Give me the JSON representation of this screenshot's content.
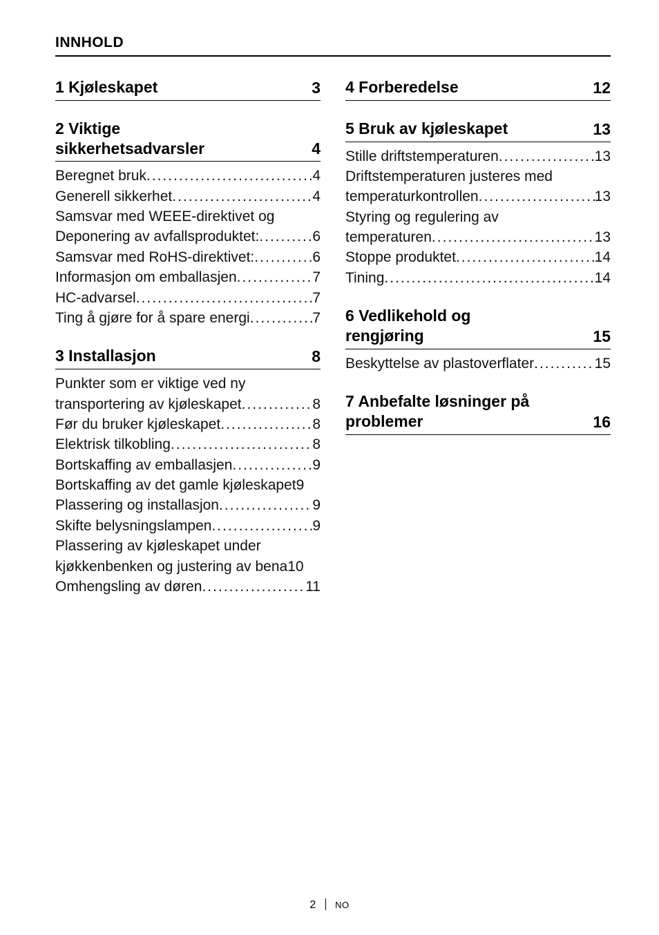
{
  "heading": "INNHOLD",
  "footer": {
    "page": "2",
    "lang": "NO"
  },
  "columns": {
    "left": [
      {
        "title_lines": [
          "1  Kjøleskapet"
        ],
        "page": "3",
        "entries": []
      },
      {
        "title_lines": [
          "2  Viktige",
          "sikkerhetsadvarsler"
        ],
        "page": "4",
        "entries": [
          {
            "label": "Beregnet bruk",
            "page": "4"
          },
          {
            "label": "Generell sikkerhet",
            "page": "4"
          },
          {
            "label_cont": "Samsvar med WEEE-direktivet og"
          },
          {
            "label": "Deponering av avfallsproduktet: ",
            "page": "6"
          },
          {
            "label": "Samsvar med RoHS-direktivet:",
            "page": "6"
          },
          {
            "label": "Informasjon om emballasjen ",
            "page": "7"
          },
          {
            "label": "HC-advarsel",
            "page": "7"
          },
          {
            "label": "Ting å gjøre for å spare energi ",
            "page": "7"
          }
        ]
      },
      {
        "title_lines": [
          "3  Installasjon"
        ],
        "page": "8",
        "entries": [
          {
            "label_cont": "Punkter som er viktige ved ny"
          },
          {
            "label": "transportering av kjøleskapet",
            "page": "8"
          },
          {
            "label": "Før du bruker kjøleskapet",
            "page": "8"
          },
          {
            "label": "Elektrisk tilkobling",
            "page": "8"
          },
          {
            "label": "Bortskaffing av emballasjen ",
            "page": "9"
          },
          {
            "label": "Bortskaffing av det gamle kjøleskapet",
            "page": "9",
            "nodots": true
          },
          {
            "label": "Plassering og installasjon",
            "page": "9"
          },
          {
            "label": "Skifte belysningslampen  ",
            "page": "9"
          },
          {
            "label_cont": "Plassering av kjøleskapet under"
          },
          {
            "label": "kjøkkenbenken og justering av bena",
            "page": "10",
            "nodots": true
          },
          {
            "label": "Omhengsling av døren",
            "page": "11"
          }
        ]
      }
    ],
    "right": [
      {
        "title_lines": [
          "4  Forberedelse"
        ],
        "page": "12",
        "entries": []
      },
      {
        "title_lines": [
          "5  Bruk av kjøleskapet"
        ],
        "page": "13",
        "entries": [
          {
            "label": "Stille driftstemperaturen",
            "page": "13"
          },
          {
            "label_cont": "Driftstemperaturen justeres med"
          },
          {
            "label": "temperaturkontrollen",
            "page": "13"
          },
          {
            "label_cont": "Styring og regulering av"
          },
          {
            "label": "temperaturen",
            "page": "13"
          },
          {
            "label": "Stoppe produktet ",
            "page": "14"
          },
          {
            "label": "Tining",
            "page": "14"
          }
        ]
      },
      {
        "title_lines": [
          "6  Vedlikehold og",
          "rengjøring"
        ],
        "page": "15",
        "entries": [
          {
            "label": "Beskyttelse av plastoverflater ",
            "page": "15"
          }
        ]
      },
      {
        "title_lines": [
          "7  Anbefalte løsninger på",
          "problemer"
        ],
        "page": "16",
        "entries": []
      }
    ]
  }
}
